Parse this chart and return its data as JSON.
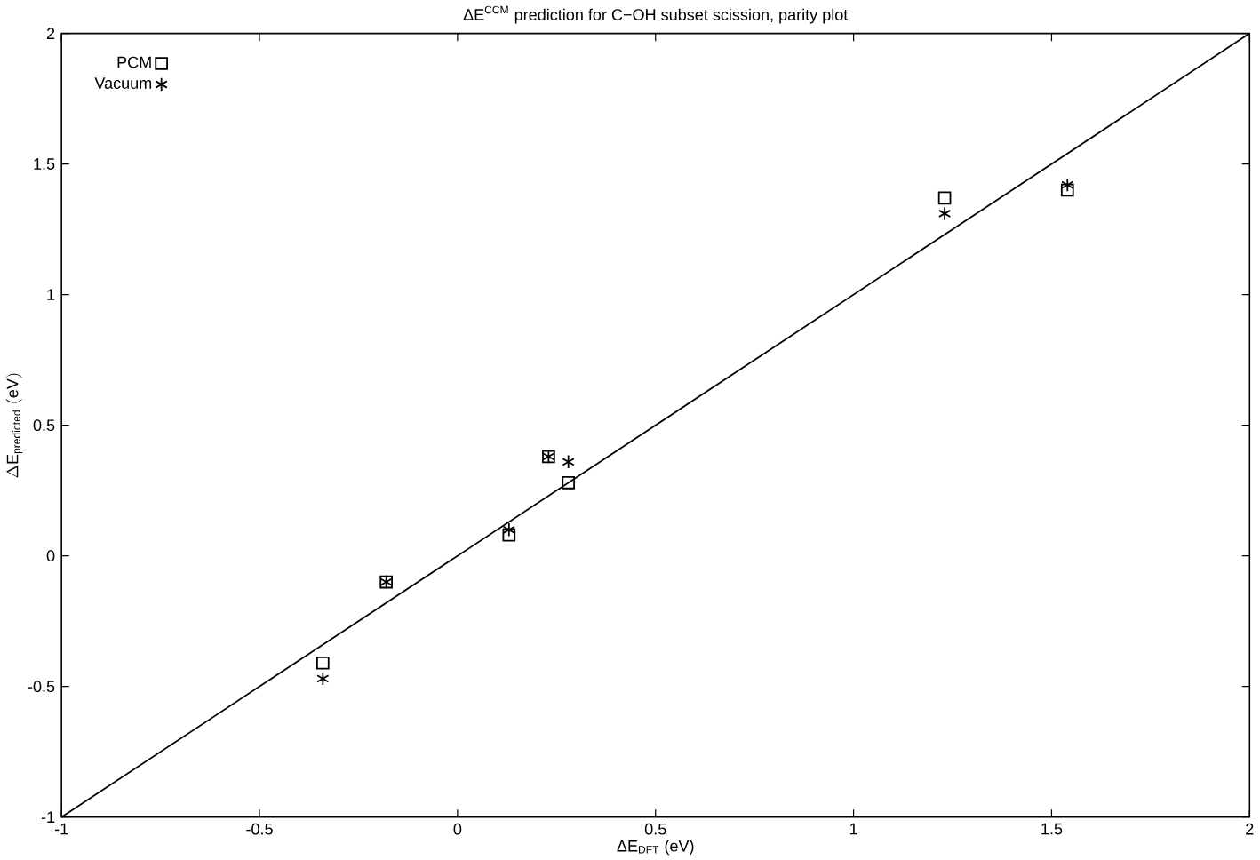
{
  "chart_data": {
    "type": "scatter",
    "title": "ΔE$^{CCM}$ prediction for C−OH subset scission, parity plot",
    "xlabel": "ΔE$_{DFT}$ (eV)",
    "ylabel": "\\Delta\\mathrm{E}_{\\mathrm{predicted}}\\ (\\mathrm{eV})",
    "xlim": [
      -1,
      2
    ],
    "ylim": [
      -1,
      2
    ],
    "xticks": [
      -1,
      -0.5,
      0,
      0.5,
      1,
      1.5,
      2
    ],
    "yticks": [
      -1,
      -0.5,
      0,
      0.5,
      1,
      1.5,
      2
    ],
    "grid": false,
    "legend": "top left",
    "series": [
      {
        "name": "PCM",
        "color": "#000000",
        "marker": "square",
        "x": [
          -0.34,
          -0.18,
          0.13,
          0.23,
          0.28,
          1.23,
          1.54
        ],
        "values": [
          -0.41,
          -0.1,
          0.08,
          0.38,
          0.28,
          1.37,
          1.4
        ]
      },
      {
        "name": "Vacuum",
        "color": "#000000",
        "marker": "cross",
        "x": [
          -0.34,
          -0.18,
          0.13,
          0.23,
          0.28,
          1.23,
          1.54
        ],
        "values": [
          -0.47,
          -0.1,
          0.1,
          0.38,
          0.36,
          1.31,
          1.42
        ]
      },
      {
        "type": "line",
        "color": "#000000",
        "marker": "none",
        "line_style": "solid",
        "x": [
          -1,
          2
        ],
        "values": [
          -1,
          2
        ]
      }
    ]
  }
}
